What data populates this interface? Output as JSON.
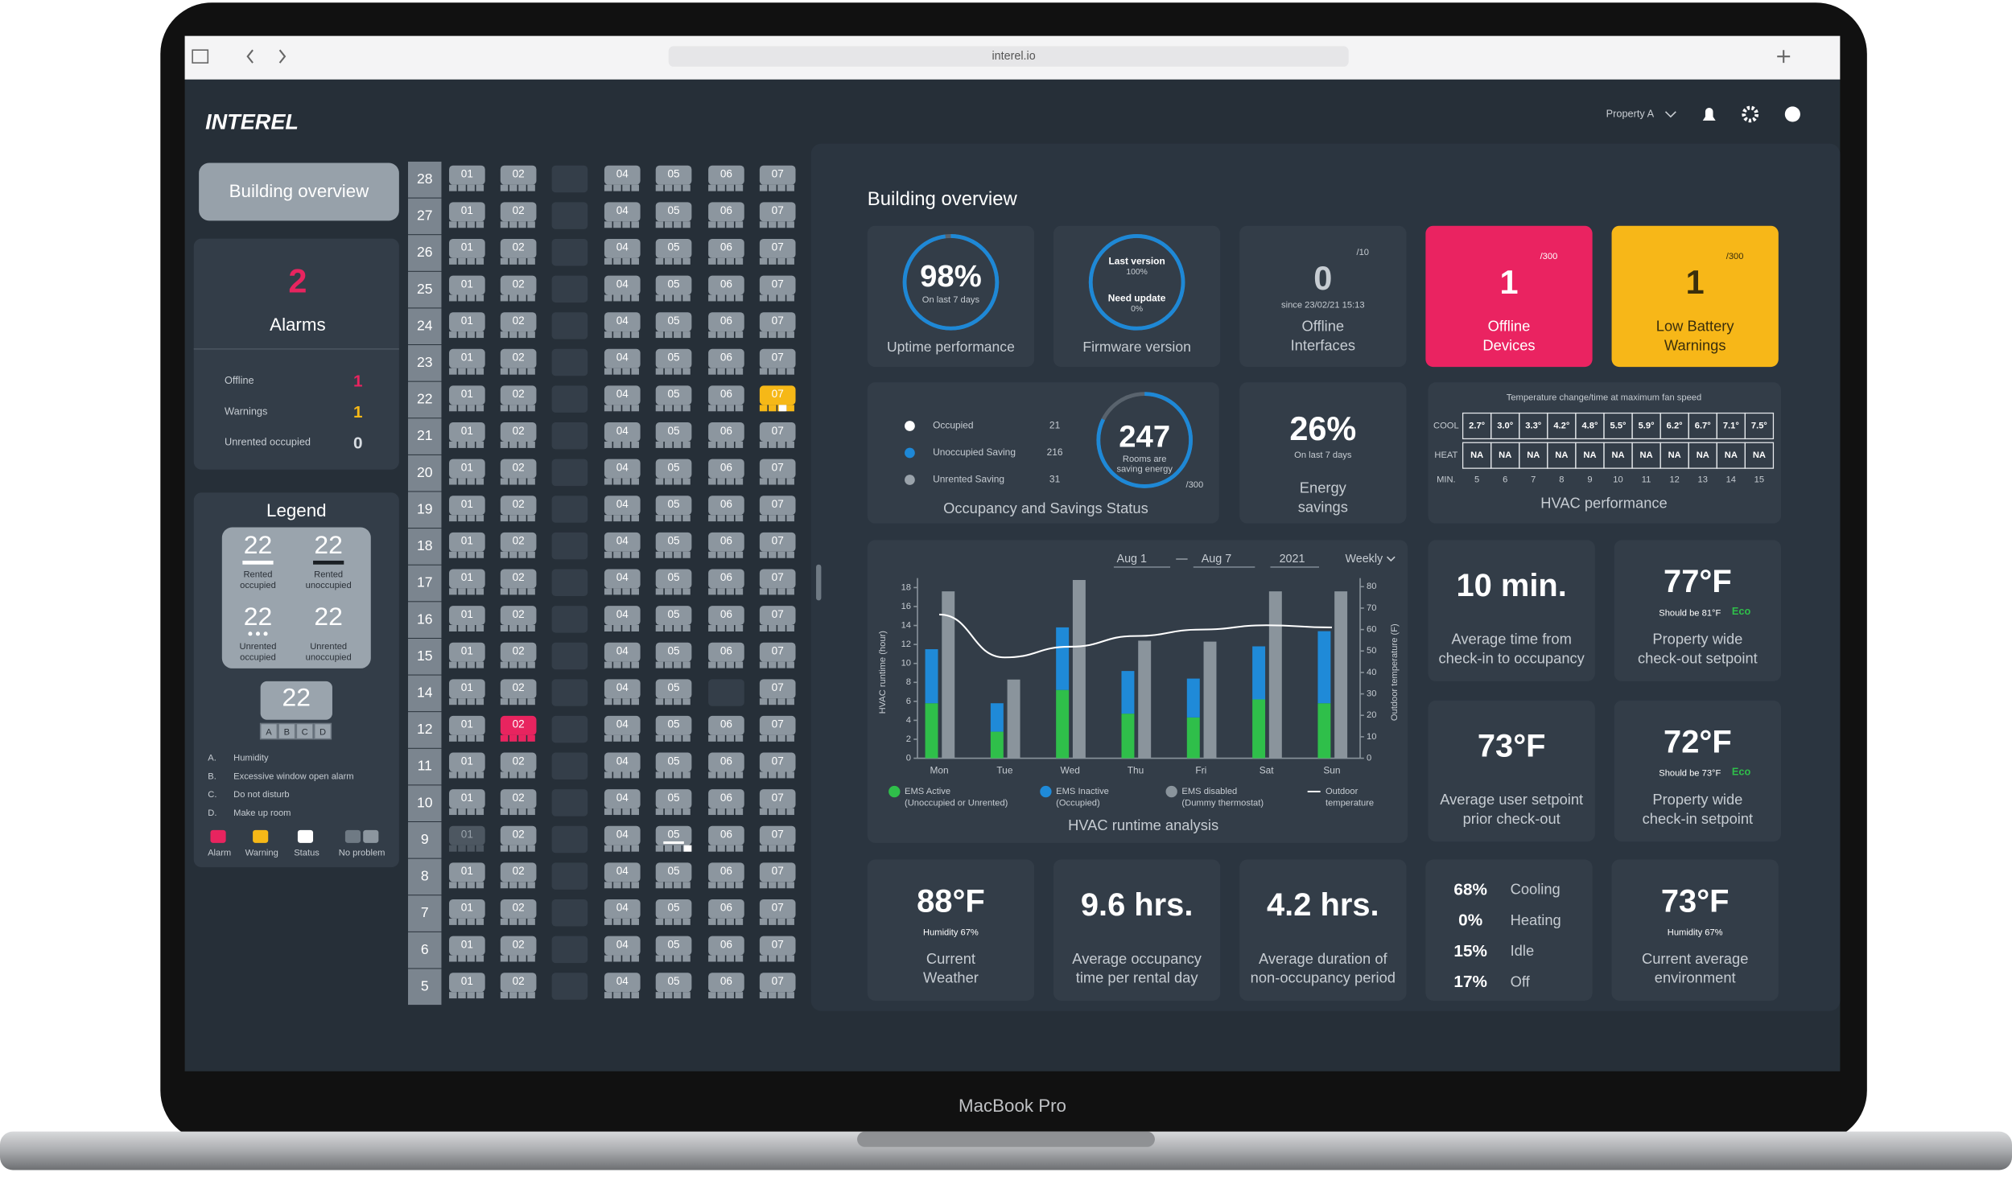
{
  "browser": {
    "url": "interel.io"
  },
  "header": {
    "logo": "INTEREL",
    "property": "Property A"
  },
  "laptop": {
    "model": "MacBook Pro"
  },
  "sidebar": {
    "nav": "Building overview",
    "alarms": {
      "count": "2",
      "title": "Alarms",
      "items": [
        {
          "label": "Offline",
          "value": "1",
          "color": "#e8245f"
        },
        {
          "label": "Warnings",
          "value": "1",
          "color": "#f6b817"
        },
        {
          "label": "Unrented occupied",
          "value": "0",
          "color": "#d8dde2"
        }
      ]
    },
    "legend": {
      "title": "Legend",
      "states": [
        {
          "number": "22",
          "lines": [
            "Rented",
            "occupied"
          ]
        },
        {
          "number": "22",
          "lines": [
            "Rented",
            "unoccupied"
          ]
        },
        {
          "number": "22",
          "lines": [
            "Unrented",
            "occupied"
          ]
        },
        {
          "number": "22",
          "lines": [
            "Unrented",
            "unoccupied"
          ]
        }
      ],
      "room": "22",
      "letters": [
        "A",
        "B",
        "C",
        "D"
      ],
      "notes": [
        {
          "key": "A.",
          "text": "Humidity"
        },
        {
          "key": "B.",
          "text": "Excessive window open alarm"
        },
        {
          "key": "C.",
          "text": "Do not disturb"
        },
        {
          "key": "D.",
          "text": "Make up room"
        }
      ],
      "swatches": [
        {
          "label": "Alarm",
          "colors": [
            "#e8245f"
          ]
        },
        {
          "label": "Warning",
          "colors": [
            "#f6b817"
          ]
        },
        {
          "label": "Status",
          "colors": [
            "#ffffff"
          ]
        },
        {
          "label": "No problem",
          "colors": [
            "#6f7a84",
            "#8c969f"
          ]
        }
      ]
    }
  },
  "floors": {
    "levels": [
      "28",
      "27",
      "26",
      "25",
      "24",
      "23",
      "22",
      "21",
      "20",
      "19",
      "18",
      "17",
      "16",
      "15",
      "14",
      "12",
      "11",
      "10",
      "9",
      "8",
      "7",
      "6",
      "5"
    ],
    "rooms": [
      "01",
      "02",
      null,
      "04",
      "05",
      "06",
      "07"
    ],
    "states": [
      {
        "floor": "22",
        "room": "07",
        "state": "warning"
      },
      {
        "floor": "12",
        "room": "02",
        "state": "alarm"
      },
      {
        "floor": "14",
        "room": "06",
        "state": "empty"
      },
      {
        "floor": "9",
        "room": "01",
        "state": "dim"
      },
      {
        "floor": "9",
        "room": "05",
        "state": "status"
      }
    ]
  },
  "main": {
    "title": "Building overview",
    "uptime": {
      "value": "98%",
      "ring": 98,
      "sub": "On last 7 days",
      "label": "Uptime performance"
    },
    "firmware": {
      "lines": [
        {
          "label": "Last version",
          "value": "100%"
        },
        {
          "label": "Need update",
          "value": "0%"
        }
      ],
      "label": "Firmware version"
    },
    "interfaces": {
      "value": "0",
      "total": "/10",
      "sub": "since 23/02/21 15:13",
      "lines": [
        "Offline",
        "Interfaces"
      ]
    },
    "devices": {
      "value": "1",
      "total": "/300",
      "lines": [
        "Offline",
        "Devices"
      ]
    },
    "battery": {
      "value": "1",
      "total": "/300",
      "lines": [
        "Low Battery",
        "Warnings"
      ]
    },
    "occupancy": {
      "items": [
        {
          "label": "Occupied",
          "value": "21",
          "color": "#ffffff"
        },
        {
          "label": "Unoccupied Saving",
          "value": "216",
          "color": "#1e88d6"
        },
        {
          "label": "Unrented Saving",
          "value": "31",
          "color": "#9aa3ab"
        }
      ],
      "value": 247,
      "total": 300,
      "total_label": "/300",
      "sub": [
        "Rooms are",
        "saving energy"
      ],
      "label": "Occupancy and Savings Status"
    },
    "energy": {
      "value": "26%",
      "sub": "On last 7 days",
      "lines": [
        "Energy",
        "savings"
      ]
    },
    "hvac_table": {
      "title": "Temperature change/time at maximum fan speed",
      "rows": [
        {
          "label": "COOL",
          "values": [
            "2.7°",
            "3.0°",
            "3.3°",
            "4.2°",
            "4.8°",
            "5.5°",
            "5.9°",
            "6.2°",
            "6.7°",
            "7.1°",
            "7.5°"
          ]
        },
        {
          "label": "HEAT",
          "values": [
            "NA",
            "NA",
            "NA",
            "NA",
            "NA",
            "NA",
            "NA",
            "NA",
            "NA",
            "NA",
            "NA"
          ]
        }
      ],
      "min": {
        "label": "MIN.",
        "values": [
          "5",
          "6",
          "7",
          "8",
          "9",
          "10",
          "11",
          "12",
          "13",
          "14",
          "15"
        ]
      },
      "label": "HVAC performance"
    },
    "cards": [
      {
        "value": "10 min.",
        "lines": [
          "Average time from",
          "check-in to occupancy"
        ]
      },
      {
        "value": "77°F",
        "note": "Should be 81°F",
        "eco": "Eco",
        "lines": [
          "Property wide",
          "check-out setpoint"
        ]
      },
      {
        "value": "73°F",
        "lines": [
          "Average user setpoint",
          "prior check-out"
        ]
      },
      {
        "value": "72°F",
        "note": "Should be 73°F",
        "eco": "Eco",
        "lines": [
          "Property wide",
          "check-in setpoint"
        ]
      }
    ],
    "bottom": [
      {
        "value": "88°F",
        "note": "Humidity 67%",
        "lines": [
          "Current",
          "Weather"
        ]
      },
      {
        "value": "9.6 hrs.",
        "lines": [
          "Average occupancy",
          "time per rental day"
        ]
      },
      {
        "value": "4.2 hrs.",
        "lines": [
          "Average duration of",
          "non-occupancy period"
        ]
      },
      {
        "value": "73°F",
        "note": "Humidity 67%",
        "lines": [
          "Current average",
          "environment"
        ]
      }
    ],
    "modes": [
      {
        "value": "68%",
        "label": "Cooling"
      },
      {
        "value": "0%",
        "label": "Heating"
      },
      {
        "value": "15%",
        "label": "Idle"
      },
      {
        "value": "17%",
        "label": "Off"
      }
    ]
  },
  "chart_data": {
    "type": "bar",
    "title": "HVAC runtime analysis",
    "controls": {
      "from": "Aug 1",
      "separator": "—",
      "to": "Aug 7",
      "year": "2021",
      "period": "Weekly"
    },
    "categories": [
      "Mon",
      "Tue",
      "Wed",
      "Thu",
      "Fri",
      "Sat",
      "Sun"
    ],
    "series": [
      {
        "name": "EMS Active",
        "note": "(Unoccupied or Unrented)",
        "color": "#2fbf4a",
        "stack": "runtime",
        "values": [
          5.8,
          2.8,
          7.2,
          4.7,
          4.3,
          6.2,
          5.8
        ]
      },
      {
        "name": "EMS Inactive",
        "note": "(Occupied)",
        "color": "#1f8ad8",
        "stack": "runtime",
        "values": [
          5.7,
          3,
          6.6,
          4.5,
          4.1,
          5.6,
          7.6
        ]
      },
      {
        "name": "EMS disabled",
        "note": "(Dummy thermostat)",
        "color": "#8a949c",
        "values": [
          17.6,
          8.3,
          18.8,
          12.4,
          12.3,
          17.6,
          17.6
        ]
      },
      {
        "name": "Outdoor",
        "note": "temperature",
        "color": "#ffffff",
        "type": "line",
        "axis": "y2",
        "values": [
          67,
          47,
          52,
          57,
          60,
          62,
          61
        ]
      }
    ],
    "ylim": [
      0,
      19
    ],
    "yticks": [
      0,
      2,
      4,
      6,
      8,
      10,
      12,
      14,
      16,
      18
    ],
    "y2lim": [
      0,
      84
    ],
    "y2ticks": [
      0,
      10,
      20,
      30,
      40,
      50,
      60,
      70,
      80
    ],
    "ylabel": "HVAC runtime (hour)",
    "y2label": "Outdoor temperature (F)"
  }
}
